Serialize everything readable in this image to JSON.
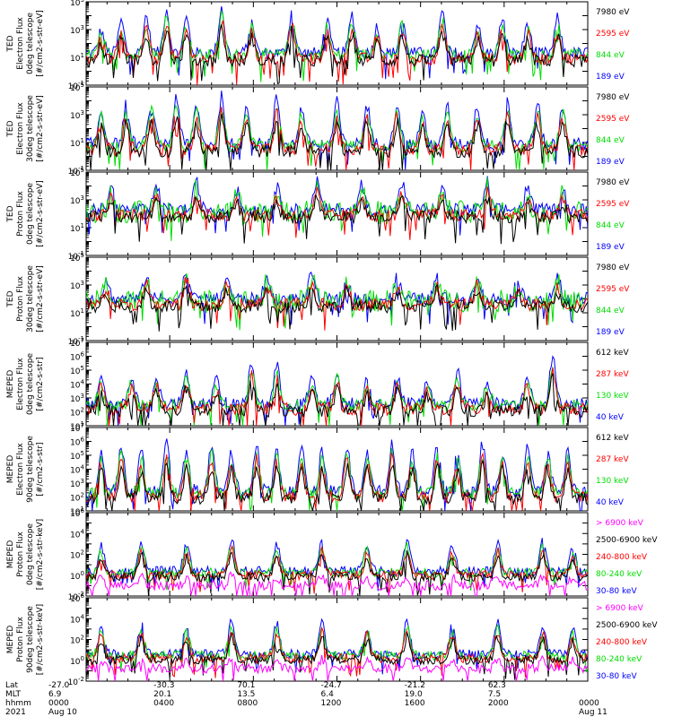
{
  "chart_data": [
    {
      "type": "line",
      "panel": 1,
      "ylabel": [
        "TED",
        "Electron Flux",
        "0deg telescope",
        "[#/cm2-s-str-eV]"
      ],
      "y_tick_labels": [
        "10^-1",
        "10^1",
        "10^3",
        "10^5"
      ],
      "ylim": [
        0.1,
        100000
      ],
      "log_scale": true,
      "legend": [
        "7980 eV",
        "2595 eV",
        "844 eV",
        "189 eV"
      ],
      "series_colors": [
        "#000000",
        "#ff0000",
        "#00dd00",
        "#0000ff"
      ],
      "peaks": [
        [
          0.03,
          2.6
        ],
        [
          0.07,
          3.3
        ],
        [
          0.12,
          3.7
        ],
        [
          0.16,
          4.2
        ],
        [
          0.2,
          3.5
        ],
        [
          0.27,
          4.3
        ],
        [
          0.33,
          3.5
        ],
        [
          0.41,
          4.0
        ],
        [
          0.48,
          3.4
        ],
        [
          0.53,
          3.8
        ],
        [
          0.58,
          2.9
        ],
        [
          0.63,
          3.5
        ],
        [
          0.71,
          3.9
        ],
        [
          0.78,
          3.1
        ],
        [
          0.83,
          3.6
        ],
        [
          0.88,
          3.2
        ],
        [
          0.94,
          3.5
        ]
      ],
      "baseline": 1.0
    },
    {
      "type": "line",
      "panel": 2,
      "ylabel": [
        "TED",
        "Electron Flux",
        "30deg telescope",
        "[#/cm2-s-str-eV]"
      ],
      "y_tick_labels": [
        "10^-1",
        "10^1",
        "10^3",
        "10^5"
      ],
      "ylim": [
        0.1,
        100000
      ],
      "log_scale": true,
      "legend": [
        "7980 eV",
        "2595 eV",
        "844 eV",
        "189 eV"
      ],
      "series_colors": [
        "#000000",
        "#ff0000",
        "#00dd00",
        "#0000ff"
      ],
      "peaks": [
        [
          0.03,
          3.0
        ],
        [
          0.08,
          3.5
        ],
        [
          0.13,
          3.7
        ],
        [
          0.18,
          4.1
        ],
        [
          0.22,
          3.4
        ],
        [
          0.27,
          4.0
        ],
        [
          0.32,
          3.6
        ],
        [
          0.38,
          3.9
        ],
        [
          0.43,
          3.2
        ],
        [
          0.5,
          3.6
        ],
        [
          0.56,
          3.4
        ],
        [
          0.62,
          3.6
        ],
        [
          0.67,
          2.9
        ],
        [
          0.72,
          3.3
        ],
        [
          0.78,
          3.4
        ],
        [
          0.84,
          3.8
        ],
        [
          0.9,
          3.4
        ],
        [
          0.95,
          3.3
        ]
      ],
      "baseline": 0.6
    },
    {
      "type": "line",
      "panel": 3,
      "ylabel": [
        "TED",
        "Proton Flux",
        "0deg telescope",
        "[#/cm2-s-str-eV]"
      ],
      "y_tick_labels": [
        "10^-1",
        "10^1",
        "10^3",
        "10^5"
      ],
      "ylim": [
        0.1,
        100000
      ],
      "log_scale": true,
      "legend": [
        "7980 eV",
        "2595 eV",
        "844 eV",
        "189 eV"
      ],
      "series_colors": [
        "#000000",
        "#ff0000",
        "#00dd00",
        "#0000ff"
      ],
      "peaks": [
        [
          0.05,
          3.6
        ],
        [
          0.14,
          3.7
        ],
        [
          0.22,
          4.0
        ],
        [
          0.3,
          3.4
        ],
        [
          0.38,
          3.6
        ],
        [
          0.46,
          4.1
        ],
        [
          0.55,
          3.8
        ],
        [
          0.63,
          3.9
        ],
        [
          0.71,
          3.5
        ],
        [
          0.8,
          4.0
        ],
        [
          0.88,
          3.6
        ],
        [
          0.95,
          3.5
        ]
      ],
      "baseline": 2.0
    },
    {
      "type": "line",
      "panel": 4,
      "ylabel": [
        "TED",
        "Proton Flux",
        "30deg telescope",
        "[#/cm2-s-str-eV]"
      ],
      "y_tick_labels": [
        "10^-1",
        "10^1",
        "10^3",
        "10^5"
      ],
      "ylim": [
        0.1,
        100000
      ],
      "log_scale": true,
      "legend": [
        "7980 eV",
        "2595 eV",
        "844 eV",
        "189 eV"
      ],
      "series_colors": [
        "#000000",
        "#ff0000",
        "#00dd00",
        "#0000ff"
      ],
      "peaks": [
        [
          0.04,
          3.0
        ],
        [
          0.12,
          3.4
        ],
        [
          0.2,
          3.9
        ],
        [
          0.28,
          3.3
        ],
        [
          0.36,
          3.2
        ],
        [
          0.45,
          3.6
        ],
        [
          0.52,
          3.3
        ],
        [
          0.62,
          3.4
        ],
        [
          0.7,
          3.4
        ],
        [
          0.78,
          3.5
        ],
        [
          0.86,
          3.1
        ],
        [
          0.94,
          3.2
        ]
      ],
      "baseline": 1.7
    },
    {
      "type": "line",
      "panel": 5,
      "ylabel": [
        "MEPED",
        "Electron Flux",
        "0deg telescope",
        "[#/cm2-s-str]"
      ],
      "y_tick_labels": [
        "10^1",
        "10^2",
        "10^3",
        "10^4",
        "10^5",
        "10^6",
        "10^7"
      ],
      "ylim": [
        10,
        10000000
      ],
      "log_scale": true,
      "legend": [
        "612 keV",
        "287 keV",
        "130 keV",
        "40 keV"
      ],
      "series_colors": [
        "#000000",
        "#ff0000",
        "#00dd00",
        "#0000ff"
      ],
      "peaks": [
        [
          0.03,
          4.5
        ],
        [
          0.09,
          4.2
        ],
        [
          0.14,
          4.4
        ],
        [
          0.2,
          4.7
        ],
        [
          0.26,
          4.0
        ],
        [
          0.33,
          5.3
        ],
        [
          0.38,
          5.0
        ],
        [
          0.45,
          4.2
        ],
        [
          0.5,
          4.6
        ],
        [
          0.56,
          4.0
        ],
        [
          0.62,
          4.3
        ],
        [
          0.68,
          3.8
        ],
        [
          0.74,
          4.6
        ],
        [
          0.8,
          4.0
        ],
        [
          0.88,
          4.4
        ],
        [
          0.93,
          5.6
        ]
      ],
      "baseline": 2.3
    },
    {
      "type": "line",
      "panel": 6,
      "ylabel": [
        "MEPED",
        "Electron Flux",
        "90deg telescope",
        "[#/cm2-s-str]"
      ],
      "y_tick_labels": [
        "10^1",
        "10^2",
        "10^3",
        "10^4",
        "10^5",
        "10^6",
        "10^7"
      ],
      "ylim": [
        10,
        10000000
      ],
      "log_scale": true,
      "legend": [
        "612 keV",
        "287 keV",
        "130 keV",
        "40 keV"
      ],
      "series_colors": [
        "#000000",
        "#ff0000",
        "#00dd00",
        "#0000ff"
      ],
      "peaks": [
        [
          0.03,
          5.0
        ],
        [
          0.07,
          5.3
        ],
        [
          0.11,
          4.9
        ],
        [
          0.16,
          5.6
        ],
        [
          0.2,
          5.1
        ],
        [
          0.25,
          5.4
        ],
        [
          0.29,
          5.0
        ],
        [
          0.34,
          5.5
        ],
        [
          0.38,
          5.1
        ],
        [
          0.43,
          5.3
        ],
        [
          0.47,
          4.9
        ],
        [
          0.52,
          5.4
        ],
        [
          0.56,
          5.0
        ],
        [
          0.61,
          5.6
        ],
        [
          0.65,
          5.1
        ],
        [
          0.7,
          5.3
        ],
        [
          0.74,
          4.9
        ],
        [
          0.79,
          5.5
        ],
        [
          0.83,
          5.0
        ],
        [
          0.88,
          5.4
        ],
        [
          0.92,
          5.2
        ],
        [
          0.96,
          5.0
        ]
      ],
      "baseline": 2.1
    },
    {
      "type": "line",
      "panel": 7,
      "ylabel": [
        "MEPED",
        "Proton Flux",
        "0deg telescope",
        "[#/cm2-s-str-keV]"
      ],
      "y_tick_labels": [
        "10^-2",
        "10^0",
        "10^2",
        "10^4",
        "10^6"
      ],
      "ylim": [
        0.01,
        1000000
      ],
      "log_scale": true,
      "legend": [
        "> 6900 keV",
        "2500-6900 keV",
        "240-800 keV",
        "80-240 keV",
        "30-80 keV"
      ],
      "series_colors": [
        "#ff00ff",
        "#000000",
        "#ff0000",
        "#00dd00",
        "#0000ff"
      ],
      "peaks": [
        [
          0.03,
          2.5
        ],
        [
          0.11,
          3.0
        ],
        [
          0.2,
          2.7
        ],
        [
          0.29,
          3.2
        ],
        [
          0.38,
          2.8
        ],
        [
          0.47,
          3.0
        ],
        [
          0.56,
          2.6
        ],
        [
          0.64,
          3.1
        ],
        [
          0.73,
          2.7
        ],
        [
          0.82,
          3.0
        ],
        [
          0.91,
          2.9
        ],
        [
          0.97,
          2.4
        ]
      ],
      "baseline": 0.1
    },
    {
      "type": "line",
      "panel": 8,
      "ylabel": [
        "MEPED",
        "Proton Flux",
        "90deg telescope",
        "[#/cm2-s-str-keV]"
      ],
      "y_tick_labels": [
        "10^-2",
        "10^0",
        "10^2",
        "10^4",
        "10^6"
      ],
      "ylim": [
        0.01,
        1000000
      ],
      "log_scale": true,
      "legend": [
        "> 6900 keV",
        "2500-6900 keV",
        "240-800 keV",
        "80-240 keV",
        "30-80 keV"
      ],
      "series_colors": [
        "#ff00ff",
        "#000000",
        "#ff0000",
        "#00dd00",
        "#0000ff"
      ],
      "peaks": [
        [
          0.03,
          3.0
        ],
        [
          0.11,
          3.3
        ],
        [
          0.2,
          3.1
        ],
        [
          0.29,
          3.5
        ],
        [
          0.38,
          3.2
        ],
        [
          0.47,
          3.4
        ],
        [
          0.56,
          3.0
        ],
        [
          0.64,
          3.5
        ],
        [
          0.73,
          3.1
        ],
        [
          0.82,
          3.4
        ],
        [
          0.91,
          3.2
        ],
        [
          0.97,
          2.8
        ]
      ],
      "baseline": 0.3
    }
  ],
  "x_axis": {
    "row_labels": [
      "Lat",
      "MLT",
      "hhmm",
      "2021"
    ],
    "columns": [
      {
        "lat": "-27.0",
        "mlt": "6.9",
        "hhmm": "0000",
        "date": "Aug 10"
      },
      {
        "lat": "-30.3",
        "mlt": "20.1",
        "hhmm": "0400",
        "date": ""
      },
      {
        "lat": "70.1",
        "mlt": "13.5",
        "hhmm": "0800",
        "date": ""
      },
      {
        "lat": "-24.7",
        "mlt": "6.4",
        "hhmm": "1200",
        "date": ""
      },
      {
        "lat": "-21.2",
        "mlt": "19.0",
        "hhmm": "1600",
        "date": ""
      },
      {
        "lat": "62.3",
        "mlt": "7.5",
        "hhmm": "2000",
        "date": ""
      },
      {
        "lat": "",
        "mlt": "",
        "hhmm": "0000",
        "date": "Aug 11"
      }
    ]
  }
}
